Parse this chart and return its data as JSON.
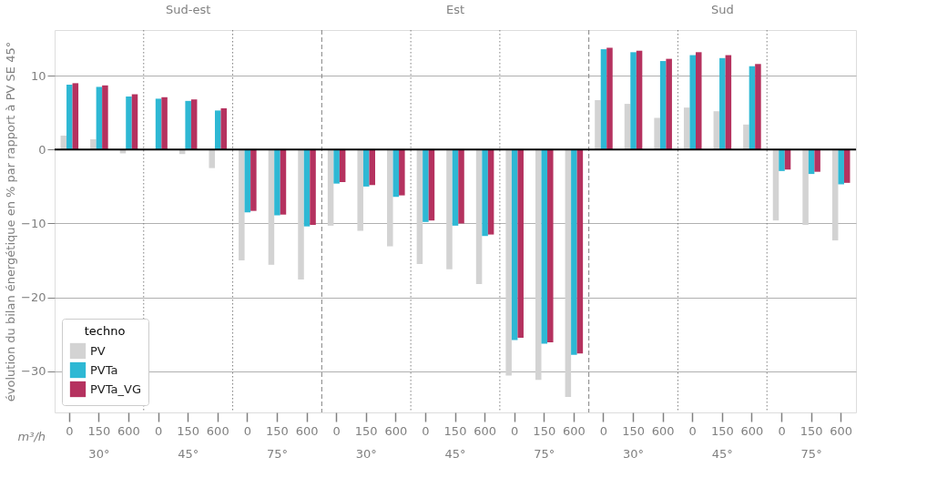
{
  "chart_data": {
    "type": "bar",
    "ylabel": "évolution du bilan énergétique en % par rapport à PV SE 45°",
    "legend_title": "techno",
    "categories": [
      "0",
      "150",
      "600",
      "0",
      "150",
      "600",
      "0",
      "150",
      "600",
      "0",
      "150",
      "600",
      "0",
      "150",
      "600",
      "0",
      "150",
      "600",
      "0",
      "150",
      "600",
      "0",
      "150",
      "600",
      "0",
      "150",
      "600"
    ],
    "series": [
      {
        "name": "PV",
        "color": "#d3d3d3",
        "values": [
          1.9,
          1.4,
          -0.5,
          0.0,
          -0.6,
          -2.5,
          -15.0,
          -15.6,
          -17.6,
          -10.3,
          -11.0,
          -13.1,
          -15.5,
          -16.2,
          -18.2,
          -30.6,
          -31.2,
          -33.5,
          6.7,
          6.2,
          4.3,
          5.7,
          5.2,
          3.4,
          -9.6,
          -10.2,
          -12.3
        ]
      },
      {
        "name": "PVTa",
        "color": "#2eb8d4",
        "values": [
          8.8,
          8.5,
          7.2,
          6.9,
          6.6,
          5.3,
          -8.5,
          -8.9,
          -10.4,
          -4.6,
          -5.0,
          -6.4,
          -9.8,
          -10.3,
          -11.7,
          -25.8,
          -26.3,
          -27.8,
          13.6,
          13.2,
          12.0,
          12.8,
          12.4,
          11.3,
          -2.9,
          -3.3,
          -4.7
        ]
      },
      {
        "name": "PVTa_VG",
        "color": "#b5325f",
        "values": [
          9.0,
          8.7,
          7.5,
          7.1,
          6.8,
          5.6,
          -8.3,
          -8.8,
          -10.2,
          -4.4,
          -4.8,
          -6.2,
          -9.6,
          -10.0,
          -11.5,
          -25.5,
          -26.1,
          -27.6,
          13.8,
          13.4,
          12.3,
          13.2,
          12.8,
          11.6,
          -2.7,
          -3.0,
          -4.5
        ]
      }
    ],
    "ylim": [
      -35.6,
      16.2
    ],
    "yticks": [
      -30,
      -20,
      -10,
      0,
      10
    ],
    "grid": "y",
    "legend": "bottom left",
    "ref_lines": [
      {
        "axis": "y",
        "value": 0,
        "color": "#000000"
      }
    ],
    "annotations": [
      "m³/h",
      "Sud-est",
      "Est",
      "Sud",
      "30°",
      "45°",
      "75°",
      "30°",
      "45°",
      "75°",
      "30°",
      "45°",
      "75°"
    ]
  }
}
